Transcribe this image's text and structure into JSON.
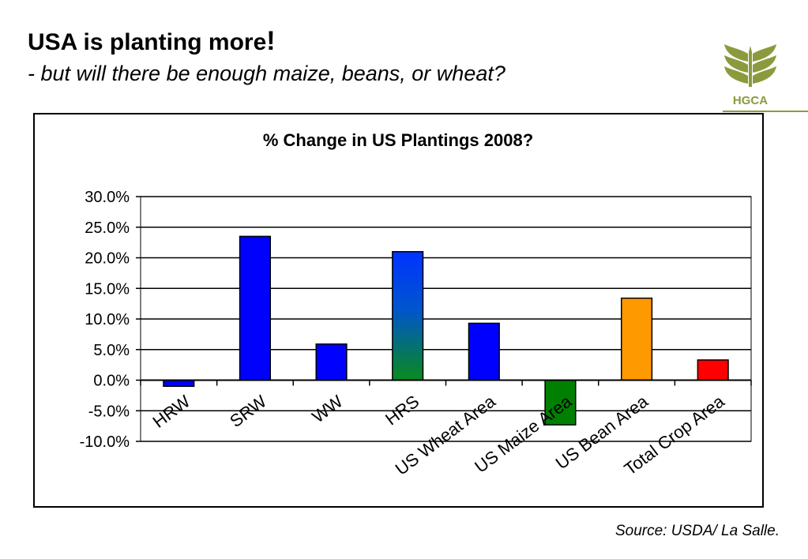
{
  "slide": {
    "title": "USA is planting more",
    "title_mark": "!",
    "subtitle": "- but will there be enough maize, beans, or wheat?",
    "source": "Source: USDA/ La Salle.",
    "logo_text": "HGCA",
    "logo_color": "#8c9a3e"
  },
  "chart_data": {
    "type": "bar",
    "title": "% Change in US Plantings 2008?",
    "xlabel": "",
    "ylabel": "",
    "categories": [
      "HRW",
      "SRW",
      "WW",
      "HRS",
      "US Wheat Area",
      "US Maize Area",
      "US Bean Area",
      "Total Crop Area"
    ],
    "values": [
      -1.0,
      23.5,
      5.9,
      21.0,
      9.3,
      -7.3,
      13.4,
      3.3
    ],
    "ylim": [
      -10,
      30
    ],
    "yticks": [
      "-10.0%",
      "-5.0%",
      "0.0%",
      "5.0%",
      "10.0%",
      "15.0%",
      "20.0%",
      "25.0%",
      "30.0%"
    ],
    "ytick_values": [
      -10,
      -5,
      0,
      5,
      10,
      15,
      20,
      25,
      30
    ],
    "grid": true,
    "legend": "none",
    "bar_colors": [
      "#0000ff",
      "#0000ff",
      "#0000ff",
      "gradient-blue-green",
      "#0000ff",
      "#008000",
      "#ff9900",
      "#ff0000"
    ]
  }
}
